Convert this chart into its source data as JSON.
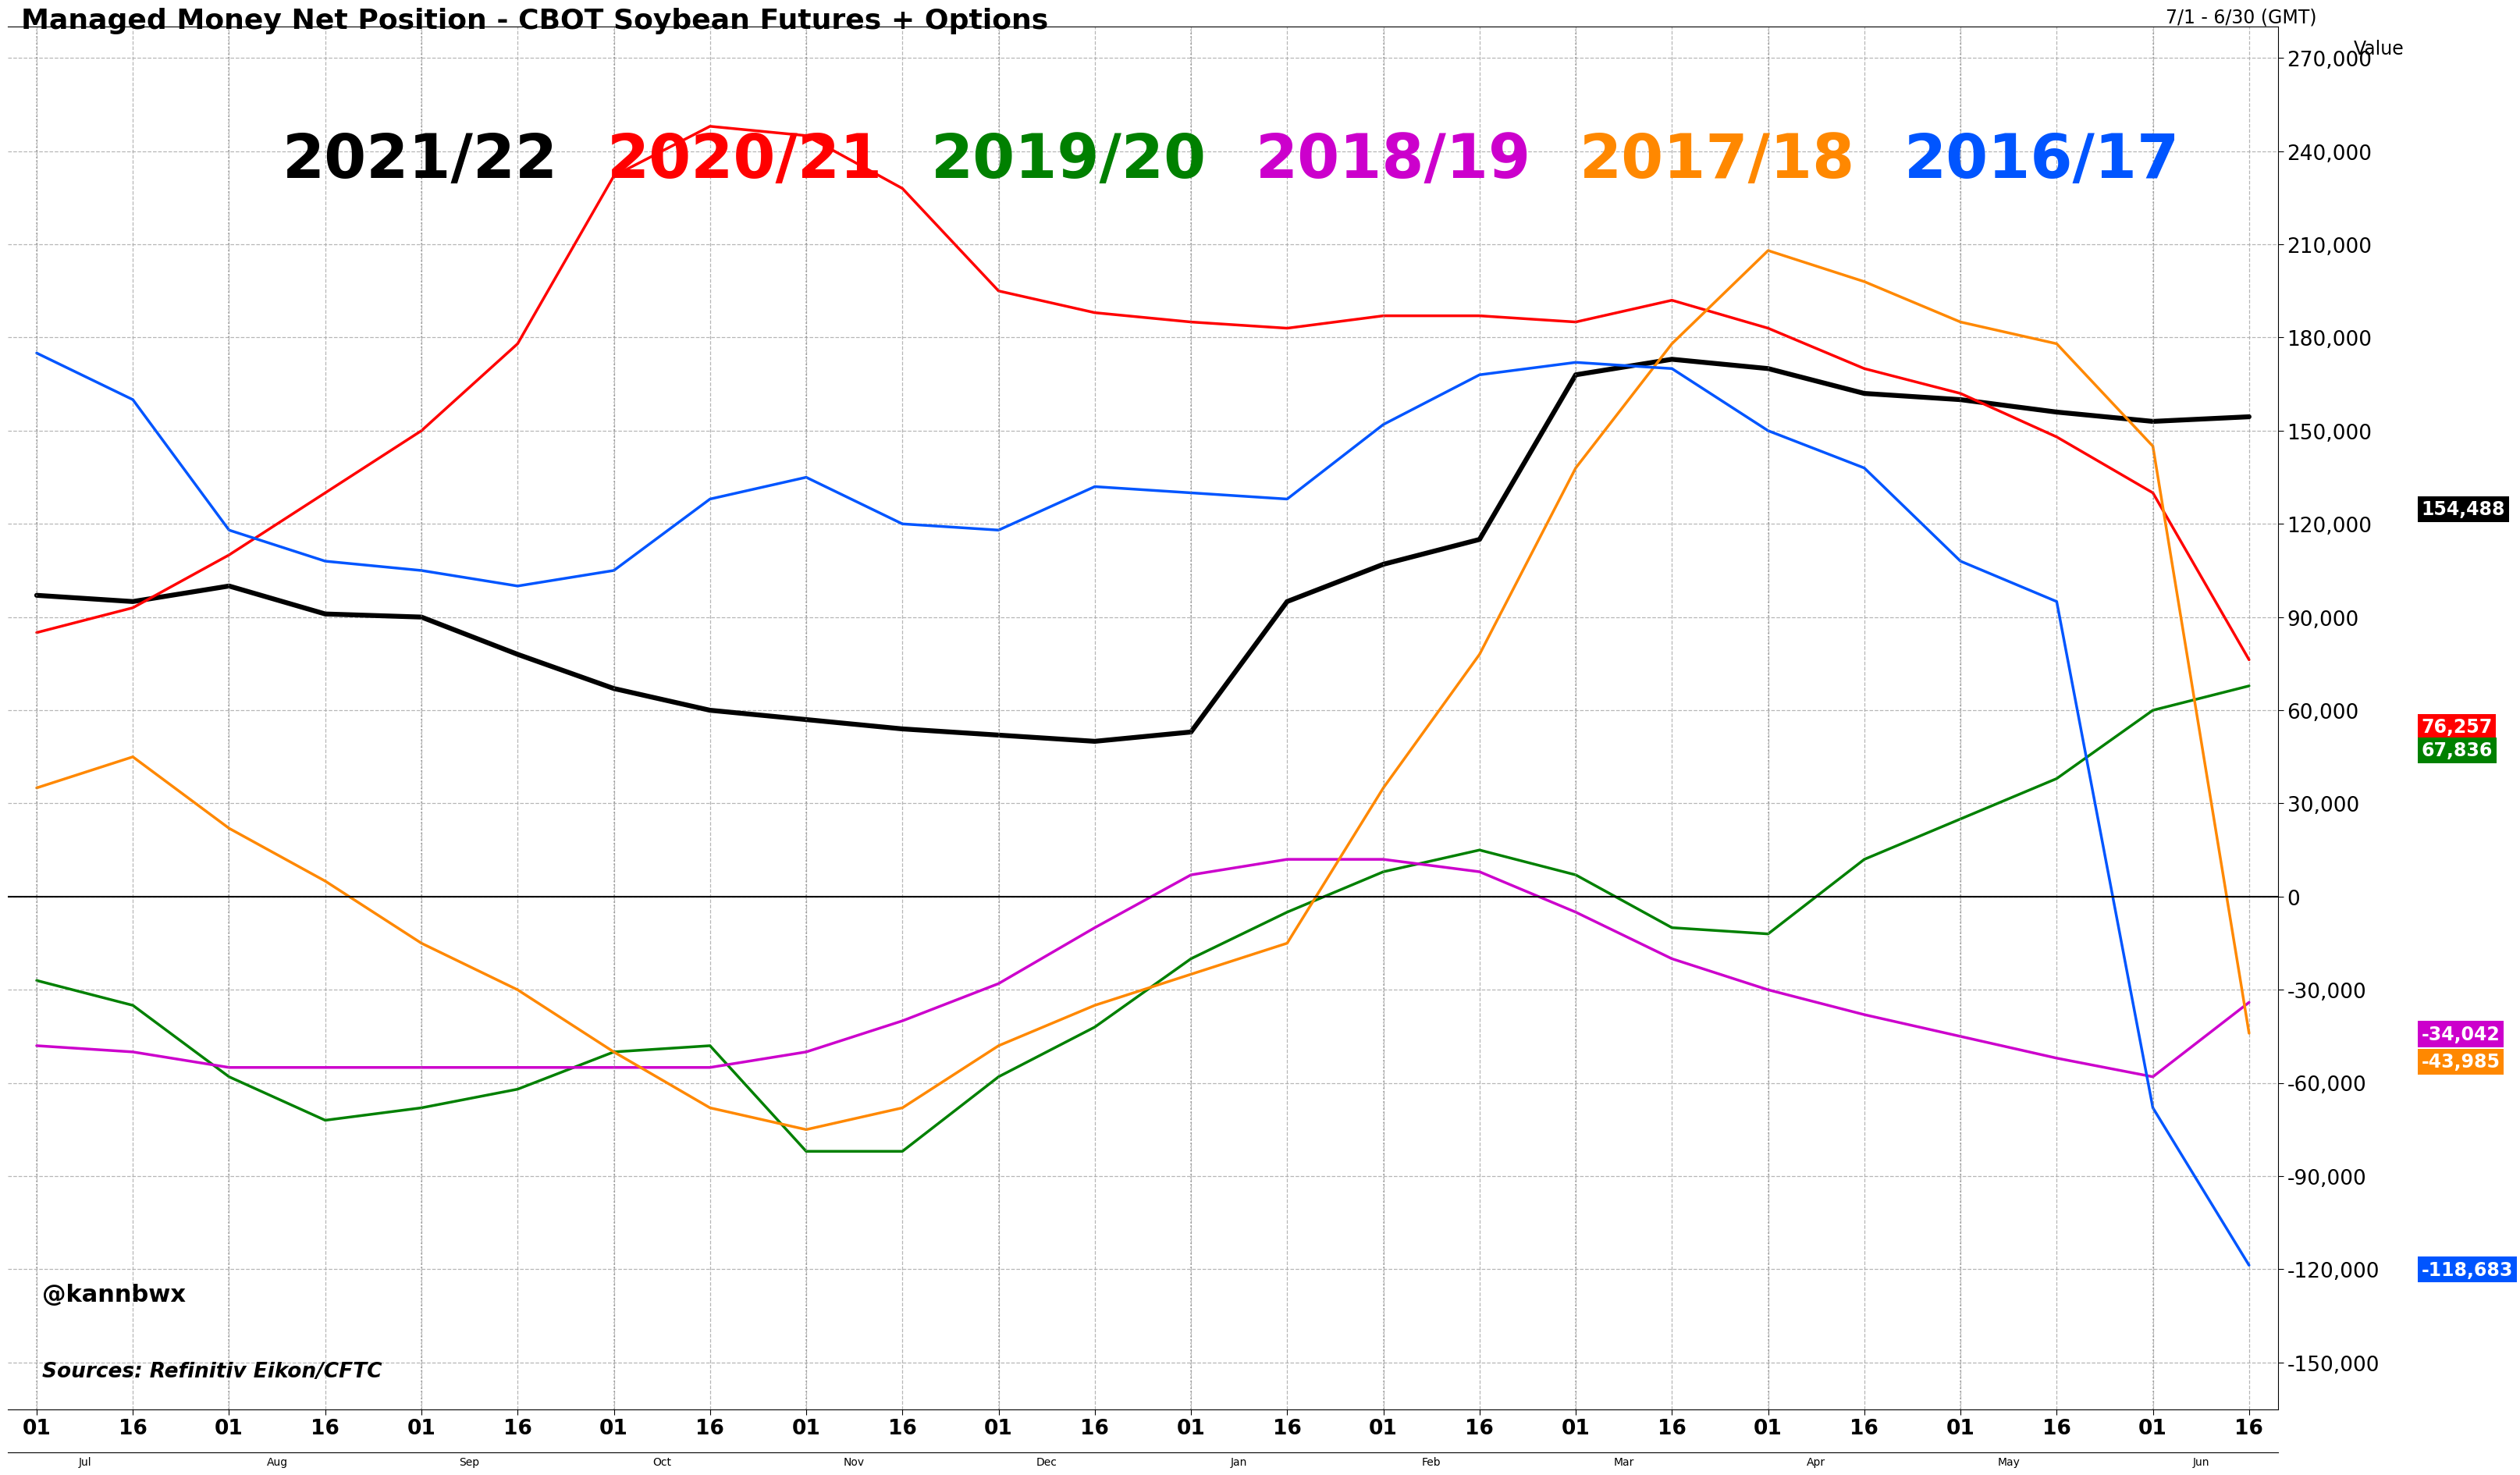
{
  "title": "Managed Money Net Position - CBOT Soybean Futures + Options",
  "subtitle_right": "7/1 - 6/30 (GMT)",
  "ylabel": "Value",
  "watermark": "@kannbwx",
  "source": "Sources: Refinitiv Eikon/CFTC",
  "background_color": "#ffffff",
  "ylim": [
    -165000,
    280000
  ],
  "yticks": [
    -150000,
    -120000,
    -90000,
    -60000,
    -30000,
    0,
    30000,
    60000,
    90000,
    120000,
    150000,
    180000,
    210000,
    240000,
    270000
  ],
  "end_labels": [
    {
      "label": "154,488",
      "color": "#000000",
      "value": 154488
    },
    {
      "label": "76,257",
      "color": "#ff0000",
      "value": 76257
    },
    {
      "label": "67,836",
      "color": "#008000",
      "value": 67836
    },
    {
      "label": "-34,042",
      "color": "#cc00cc",
      "value": -34042
    },
    {
      "label": "-43,985",
      "color": "#ff8800",
      "value": -43985
    },
    {
      "label": "-118,683",
      "color": "#0055ff",
      "value": -118683
    }
  ],
  "legend": [
    {
      "label": "2021/22",
      "color": "#000000"
    },
    {
      "label": "2020/21",
      "color": "#ff0000"
    },
    {
      "label": "2019/20",
      "color": "#008000"
    },
    {
      "label": "2018/19",
      "color": "#cc00cc"
    },
    {
      "label": "2017/18",
      "color": "#ff8800"
    },
    {
      "label": "2016/17",
      "color": "#0055ff"
    }
  ],
  "series": {
    "2021/22": {
      "color": "#000000",
      "lw": 4.5,
      "x": [
        0,
        1,
        2,
        3,
        4,
        5,
        6,
        7,
        8,
        9,
        10,
        11,
        12,
        13,
        14,
        15,
        16,
        17,
        18,
        19,
        20,
        21,
        22,
        23
      ],
      "y": [
        97000,
        95000,
        100000,
        91000,
        90000,
        78000,
        67000,
        60000,
        57000,
        54000,
        52000,
        50000,
        53000,
        95000,
        107000,
        115000,
        168000,
        173000,
        170000,
        162000,
        160000,
        156000,
        153000,
        154488
      ]
    },
    "2020/21": {
      "color": "#ff0000",
      "lw": 2.5,
      "x": [
        0,
        1,
        2,
        3,
        4,
        5,
        6,
        7,
        8,
        9,
        10,
        11,
        12,
        13,
        14,
        15,
        16,
        17,
        18,
        19,
        20,
        21,
        22,
        23
      ],
      "y": [
        85000,
        93000,
        110000,
        130000,
        150000,
        178000,
        232000,
        248000,
        245000,
        228000,
        195000,
        188000,
        185000,
        183000,
        187000,
        187000,
        185000,
        192000,
        183000,
        170000,
        162000,
        148000,
        130000,
        76257
      ]
    },
    "2019/20": {
      "color": "#008000",
      "lw": 2.5,
      "x": [
        0,
        1,
        2,
        3,
        4,
        5,
        6,
        7,
        8,
        9,
        10,
        11,
        12,
        13,
        14,
        15,
        16,
        17,
        18,
        19,
        20,
        21,
        22,
        23
      ],
      "y": [
        -27000,
        -35000,
        -58000,
        -72000,
        -68000,
        -62000,
        -50000,
        -48000,
        -82000,
        -82000,
        -58000,
        -42000,
        -20000,
        -5000,
        8000,
        15000,
        7000,
        -10000,
        -12000,
        12000,
        25000,
        38000,
        60000,
        67836
      ]
    },
    "2018/19": {
      "color": "#cc00cc",
      "lw": 2.5,
      "x": [
        0,
        1,
        2,
        3,
        4,
        5,
        6,
        7,
        8,
        9,
        10,
        11,
        12,
        13,
        14,
        15,
        16,
        17,
        18,
        19,
        20,
        21,
        22,
        23
      ],
      "y": [
        -48000,
        -50000,
        -55000,
        -55000,
        -55000,
        -55000,
        -55000,
        -55000,
        -50000,
        -40000,
        -28000,
        -10000,
        7000,
        12000,
        12000,
        8000,
        -5000,
        -20000,
        -30000,
        -38000,
        -45000,
        -52000,
        -58000,
        -34042
      ]
    },
    "2017/18": {
      "color": "#ff8800",
      "lw": 2.5,
      "x": [
        0,
        1,
        2,
        3,
        4,
        5,
        6,
        7,
        8,
        9,
        10,
        11,
        12,
        13,
        14,
        15,
        16,
        17,
        18,
        19,
        20,
        21,
        22,
        23
      ],
      "y": [
        35000,
        45000,
        22000,
        5000,
        -15000,
        -30000,
        -50000,
        -68000,
        -75000,
        -68000,
        -48000,
        -35000,
        -25000,
        -15000,
        35000,
        78000,
        138000,
        178000,
        208000,
        198000,
        185000,
        178000,
        145000,
        -43985
      ]
    },
    "2016/17": {
      "color": "#0055ff",
      "lw": 2.5,
      "x": [
        0,
        1,
        2,
        3,
        4,
        5,
        6,
        7,
        8,
        9,
        10,
        11,
        12,
        13,
        14,
        15,
        16,
        17,
        18,
        19,
        20,
        21,
        22,
        23
      ],
      "y": [
        175000,
        160000,
        118000,
        108000,
        105000,
        100000,
        105000,
        128000,
        135000,
        120000,
        118000,
        132000,
        130000,
        128000,
        152000,
        168000,
        172000,
        170000,
        150000,
        138000,
        108000,
        95000,
        -68000,
        -118683
      ]
    }
  }
}
